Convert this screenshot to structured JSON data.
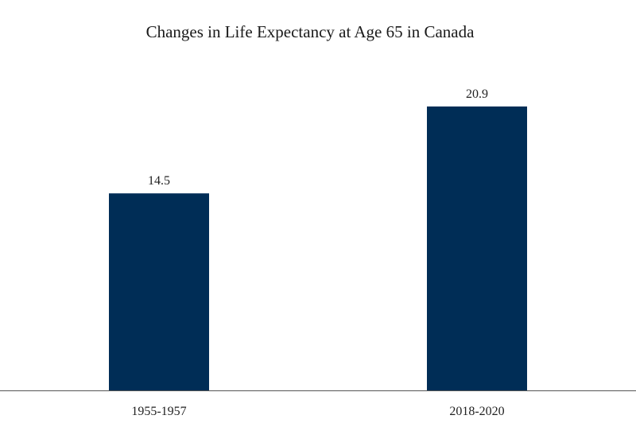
{
  "chart_data": {
    "type": "bar",
    "title": "Changes in Life Expectancy at Age 65 in Canada",
    "xlabel": "",
    "ylabel": "",
    "categories": [
      "1955-1957",
      "2018-2020"
    ],
    "values": [
      14.5,
      20.9
    ],
    "data_labels": [
      "14.5",
      "20.9"
    ],
    "ylim": [
      0,
      23
    ],
    "grid": false,
    "legend": "none",
    "bar_color": "#002d56",
    "axis_color": "#555555"
  }
}
